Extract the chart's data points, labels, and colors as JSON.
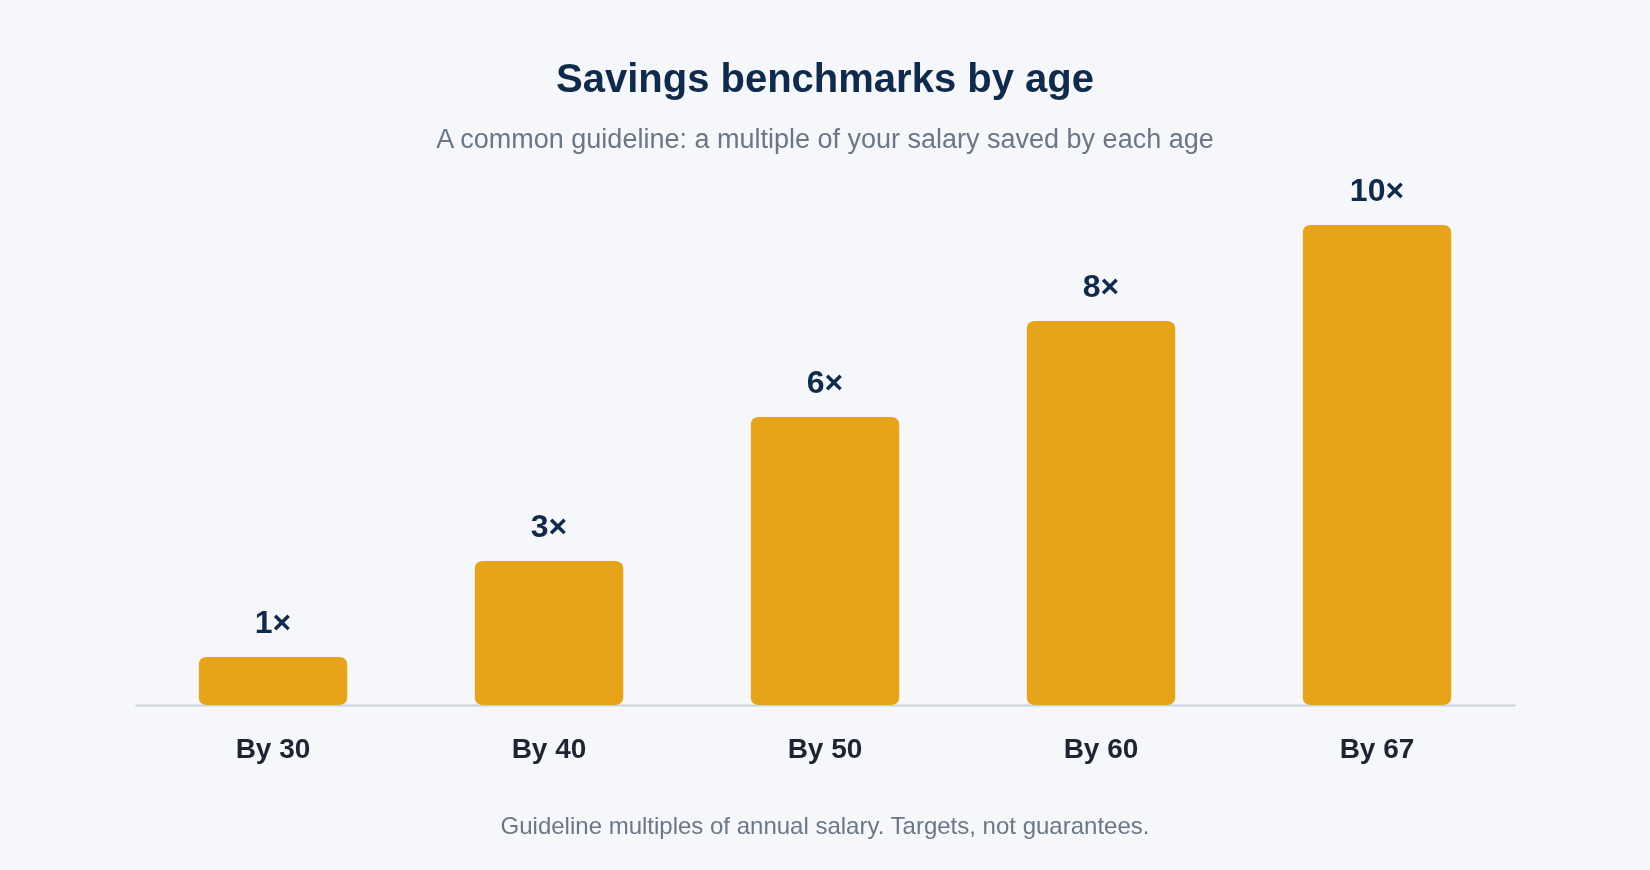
{
  "chart_data": {
    "type": "bar",
    "title": "Savings benchmarks by age",
    "subtitle": "A common guideline: a multiple of your salary saved by each age",
    "categories": [
      "By 30",
      "By 40",
      "By 50",
      "By 60",
      "By 67"
    ],
    "values": [
      1,
      3,
      6,
      8,
      10
    ],
    "value_labels": [
      "1×",
      "3×",
      "6×",
      "8×",
      "10×"
    ],
    "color": "#e5a41a",
    "annotations": [
      "Guideline multiples of annual salary. Targets, not guarantees."
    ]
  }
}
